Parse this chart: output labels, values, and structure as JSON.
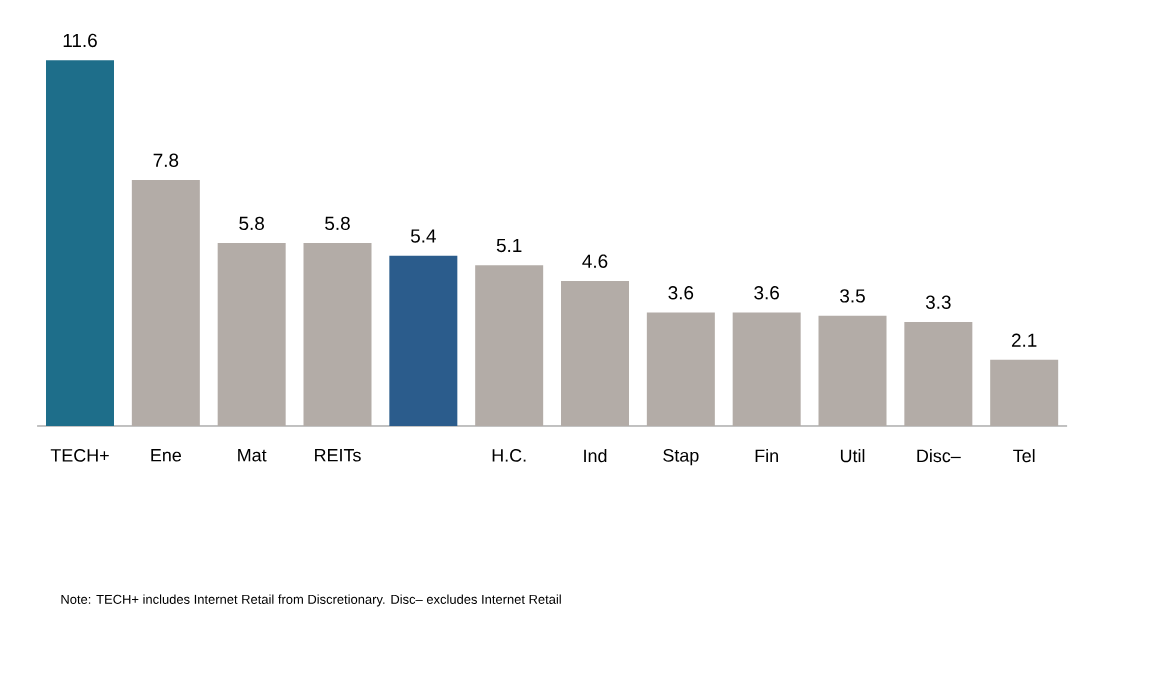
{
  "chart_data": {
    "type": "bar",
    "categories": [
      "TECH+",
      "Ene",
      "Mat",
      "REITs",
      null,
      "H.C.",
      "Ind",
      "Stap",
      "Fin",
      "Util",
      "Disc–",
      "Tel"
    ],
    "values": [
      11.6,
      7.8,
      5.8,
      5.8,
      5.4,
      5.1,
      4.6,
      3.6,
      3.6,
      3.5,
      3.3,
      2.1
    ],
    "colors": [
      "#1e6e8a",
      "#b3aca7",
      "#b3aca7",
      "#b3aca7",
      "#2b5c8c",
      "#b3aca7",
      "#b3aca7",
      "#b3aca7",
      "#b3aca7",
      "#b3aca7",
      "#b3aca7",
      "#b3aca7"
    ],
    "data_labels": true,
    "annotations": [
      "Note: TECH+ includes Internet Retail from Discretionary. Disc– excludes Internet Retail"
    ]
  }
}
